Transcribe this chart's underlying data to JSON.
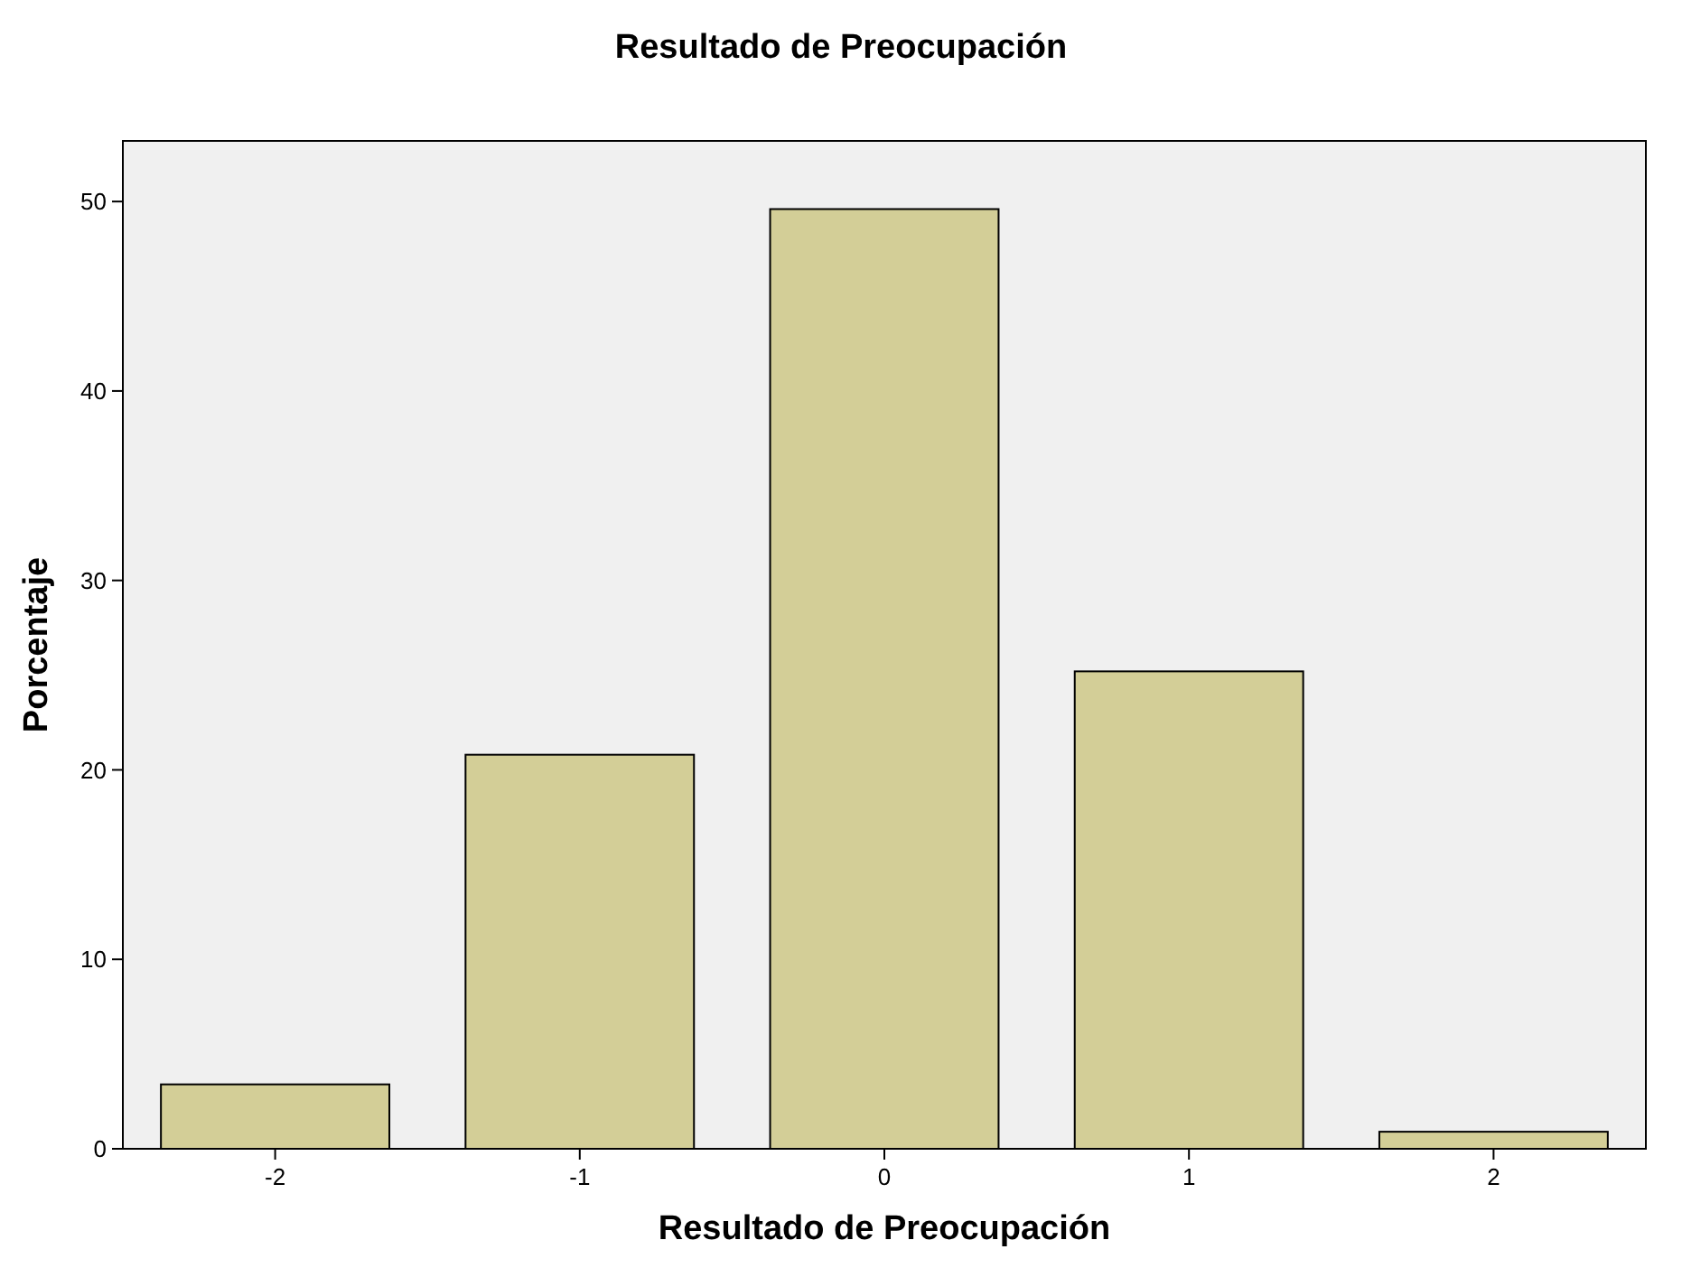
{
  "chart_data": {
    "type": "bar",
    "title": "Resultado de Preocupación",
    "xlabel": "Resultado de Preocupación",
    "ylabel": "Porcentaje",
    "categories": [
      "-2",
      "-1",
      "0",
      "1",
      "2"
    ],
    "values": [
      3.4,
      20.8,
      49.6,
      25.2,
      0.9
    ],
    "color": "#d3ce97",
    "ylim": [
      0,
      53.2
    ],
    "yticks": [
      0,
      10,
      20,
      30,
      40,
      50
    ],
    "grid": false
  }
}
